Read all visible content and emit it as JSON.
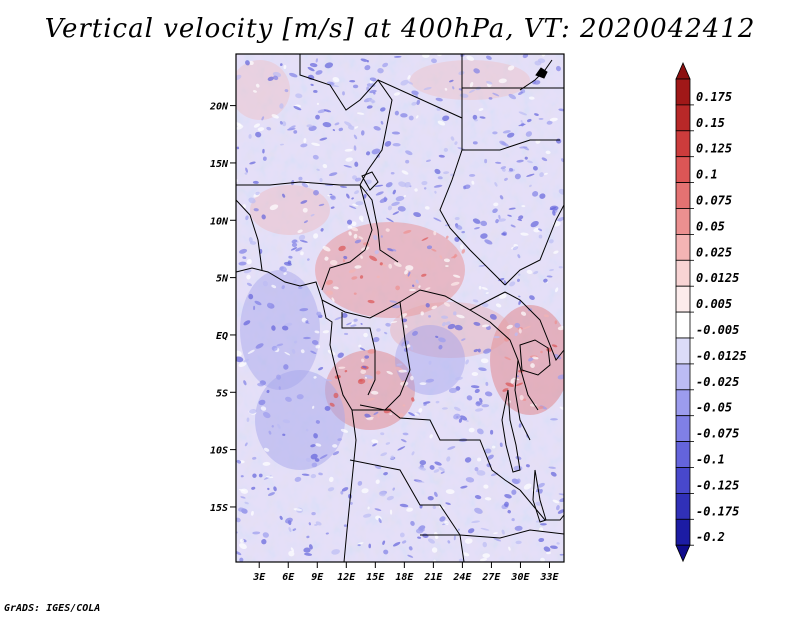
{
  "title": "Vertical velocity [m/s] at 400hPa, VT: 2020042412",
  "credit": "GrADS: IGES/COLA",
  "map": {
    "lat_labels": [
      "20N",
      "15N",
      "10N",
      "5N",
      "EQ",
      "5S",
      "10S",
      "15S"
    ],
    "lat_values": [
      20,
      15,
      10,
      5,
      0,
      -5,
      -10,
      -15
    ],
    "lon_labels": [
      "3E",
      "6E",
      "9E",
      "12E",
      "15E",
      "18E",
      "21E",
      "24E",
      "27E",
      "30E",
      "33E"
    ],
    "lon_values": [
      3,
      6,
      9,
      12,
      15,
      18,
      21,
      24,
      27,
      30,
      33
    ],
    "lon_range": [
      0.6,
      34.5
    ],
    "lat_range": [
      -19.8,
      24.5
    ]
  },
  "colorbar": {
    "labels": [
      "0.175",
      "0.15",
      "0.125",
      "0.1",
      "0.075",
      "0.05",
      "0.025",
      "0.0125",
      "0.005",
      "-0.005",
      "-0.0125",
      "-0.025",
      "-0.05",
      "-0.075",
      "-0.1",
      "-0.125",
      "-0.175",
      "-0.2"
    ],
    "colors": [
      "#a01818",
      "#b82828",
      "#cc3c3c",
      "#dc5656",
      "#e47272",
      "#ec9090",
      "#f4b4b4",
      "#f8d4d4",
      "#fcecec",
      "#ffffff",
      "#dcdcf8",
      "#bcbcf4",
      "#9c9cee",
      "#8080e6",
      "#6464dc",
      "#4848cc",
      "#3030b8",
      "#1c1ca4"
    ],
    "top_arrow_color": "#8c1010",
    "bottom_arrow_color": "#100c8c"
  }
}
